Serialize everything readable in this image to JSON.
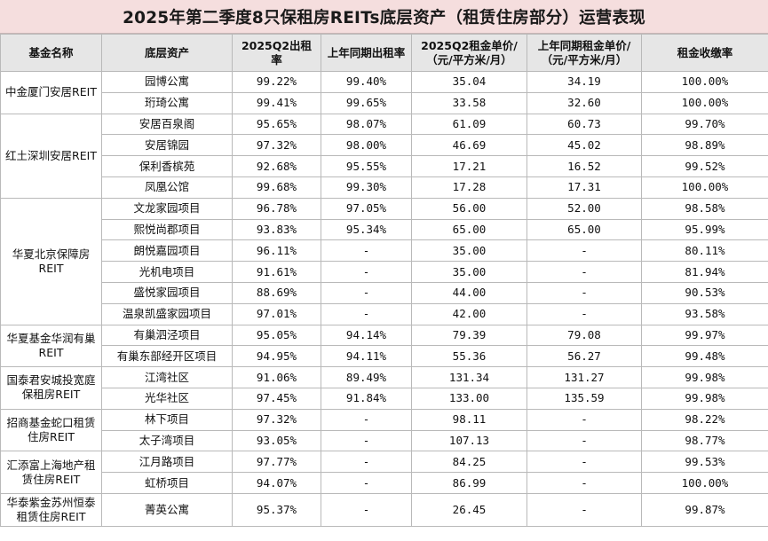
{
  "title": "2025年第二季度8只保租房REITs底层资产（租赁住房部分）运营表现",
  "headers": [
    "基金名称",
    "底层资产",
    "2025Q2出租率",
    "上年同期出租率",
    "2025Q2租金单价/（元/平方米/月）",
    "上年同期租金单价/（元/平方米/月）",
    "租金收缴率"
  ],
  "groups": [
    {
      "fund": "中金厦门安居REIT",
      "rows": [
        [
          "园博公寓",
          "99.22%",
          "99.40%",
          "35.04",
          "34.19",
          "100.00%"
        ],
        [
          "珩琦公寓",
          "99.41%",
          "99.65%",
          "33.58",
          "32.60",
          "100.00%"
        ]
      ]
    },
    {
      "fund": "红土深圳安居REIT",
      "rows": [
        [
          "安居百泉阁",
          "95.65%",
          "98.07%",
          "61.09",
          "60.73",
          "99.70%"
        ],
        [
          "安居锦园",
          "97.32%",
          "98.00%",
          "46.69",
          "45.02",
          "98.89%"
        ],
        [
          "保利香槟苑",
          "92.68%",
          "95.55%",
          "17.21",
          "16.52",
          "99.52%"
        ],
        [
          "凤凰公馆",
          "99.68%",
          "99.30%",
          "17.28",
          "17.31",
          "100.00%"
        ]
      ]
    },
    {
      "fund": "华夏北京保障房REIT",
      "rows": [
        [
          "文龙家园项目",
          "96.78%",
          "97.05%",
          "56.00",
          "52.00",
          "98.58%"
        ],
        [
          "熙悦尚郡项目",
          "93.83%",
          "95.34%",
          "65.00",
          "65.00",
          "95.99%"
        ],
        [
          "朗悦嘉园项目",
          "96.11%",
          "-",
          "35.00",
          "-",
          "80.11%"
        ],
        [
          "光机电项目",
          "91.61%",
          "-",
          "35.00",
          "-",
          "81.94%"
        ],
        [
          "盛悦家园项目",
          "88.69%",
          "-",
          "44.00",
          "-",
          "90.53%"
        ],
        [
          "温泉凯盛家园项目",
          "97.01%",
          "-",
          "42.00",
          "-",
          "93.58%"
        ]
      ]
    },
    {
      "fund": "华夏基金华润有巢REIT",
      "rows": [
        [
          "有巢泗泾项目",
          "95.05%",
          "94.14%",
          "79.39",
          "79.08",
          "99.97%"
        ],
        [
          "有巢东部经开区项目",
          "94.95%",
          "94.11%",
          "55.36",
          "56.27",
          "99.48%"
        ]
      ]
    },
    {
      "fund": "国泰君安城投宽庭保租房REIT",
      "rows": [
        [
          "江湾社区",
          "91.06%",
          "89.49%",
          "131.34",
          "131.27",
          "99.98%"
        ],
        [
          "光华社区",
          "97.45%",
          "91.84%",
          "133.00",
          "135.59",
          "99.98%"
        ]
      ]
    },
    {
      "fund": "招商基金蛇口租赁住房REIT",
      "rows": [
        [
          "林下项目",
          "97.32%",
          "-",
          "98.11",
          "-",
          "98.22%"
        ],
        [
          "太子湾项目",
          "93.05%",
          "-",
          "107.13",
          "-",
          "98.77%"
        ]
      ]
    },
    {
      "fund": "汇添富上海地产租赁住房REIT",
      "rows": [
        [
          "江月路项目",
          "97.77%",
          "-",
          "84.25",
          "-",
          "99.53%"
        ],
        [
          "虹桥项目",
          "94.07%",
          "-",
          "86.99",
          "-",
          "100.00%"
        ]
      ]
    },
    {
      "fund": "华泰紫金苏州恒泰租赁住房REIT",
      "rows": [
        [
          "菁英公寓",
          "95.37%",
          "-",
          "26.45",
          "-",
          "99.87%"
        ]
      ]
    }
  ]
}
